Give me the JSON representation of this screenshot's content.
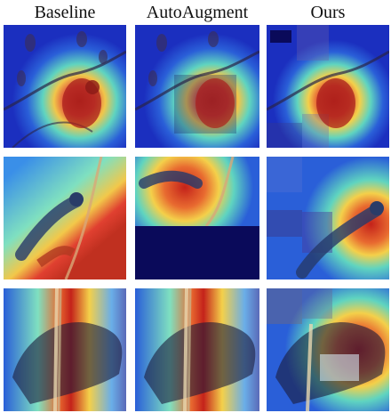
{
  "figure": {
    "columns": [
      {
        "id": "baseline",
        "label": "Baseline"
      },
      {
        "id": "autoaugment",
        "label": "AutoAugment"
      },
      {
        "id": "ours",
        "label": "Ours"
      }
    ],
    "rows": [
      {
        "subject": "red-bird-on-branch"
      },
      {
        "subject": "waxwing-on-branch"
      },
      {
        "subject": "dark-bird-on-rope"
      }
    ],
    "colors": {
      "heat_low": "#1b2fbf",
      "heat_mid": "#3fd6c8",
      "heat_high": "#c4221a",
      "mask_dark": "#0a0a5a"
    }
  }
}
